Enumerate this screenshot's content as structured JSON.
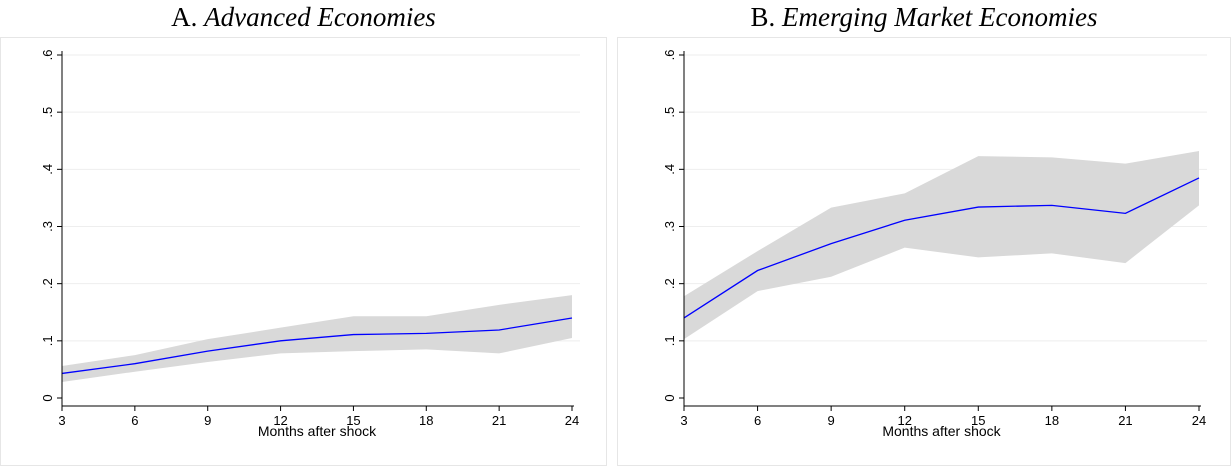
{
  "chart_data": [
    {
      "type": "area",
      "title_prefix": "A.",
      "title_main": "Advanced Economies",
      "xlabel": "Months after shock",
      "ylabel": "",
      "x": [
        3,
        6,
        9,
        12,
        15,
        18,
        21,
        24
      ],
      "xlim": [
        3,
        24
      ],
      "ylim": [
        0,
        0.6
      ],
      "yticks": [
        0,
        0.1,
        0.2,
        0.3,
        0.4,
        0.5,
        0.6
      ],
      "ytick_labels": [
        "0",
        ".1",
        ".2",
        ".3",
        ".4",
        ".5",
        ".6"
      ],
      "grid": true,
      "series": [
        {
          "values": [
            0.043,
            0.06,
            0.082,
            0.1,
            0.111,
            0.113,
            0.119,
            0.14
          ],
          "color": "#0000ff"
        }
      ],
      "band": {
        "lower": [
          0.028,
          0.046,
          0.063,
          0.078,
          0.082,
          0.085,
          0.078,
          0.105
        ],
        "upper": [
          0.056,
          0.075,
          0.103,
          0.123,
          0.143,
          0.143,
          0.163,
          0.18
        ],
        "color": "#d9d9d9"
      }
    },
    {
      "type": "area",
      "title_prefix": "B.",
      "title_main": "Emerging Market Economies",
      "xlabel": "Months after shock",
      "ylabel": "",
      "x": [
        3,
        6,
        9,
        12,
        15,
        18,
        21,
        24
      ],
      "xlim": [
        3,
        24
      ],
      "ylim": [
        0,
        0.6
      ],
      "yticks": [
        0,
        0.1,
        0.2,
        0.3,
        0.4,
        0.5,
        0.6
      ],
      "ytick_labels": [
        "0",
        ".1",
        ".2",
        ".3",
        ".4",
        ".5",
        ".6"
      ],
      "grid": true,
      "series": [
        {
          "values": [
            0.14,
            0.223,
            0.27,
            0.311,
            0.334,
            0.337,
            0.323,
            0.385
          ],
          "color": "#0000ff"
        }
      ],
      "band": {
        "lower": [
          0.103,
          0.187,
          0.212,
          0.263,
          0.246,
          0.253,
          0.236,
          0.337
        ],
        "upper": [
          0.178,
          0.257,
          0.333,
          0.358,
          0.423,
          0.421,
          0.41,
          0.432
        ],
        "color": "#d9d9d9"
      }
    }
  ]
}
